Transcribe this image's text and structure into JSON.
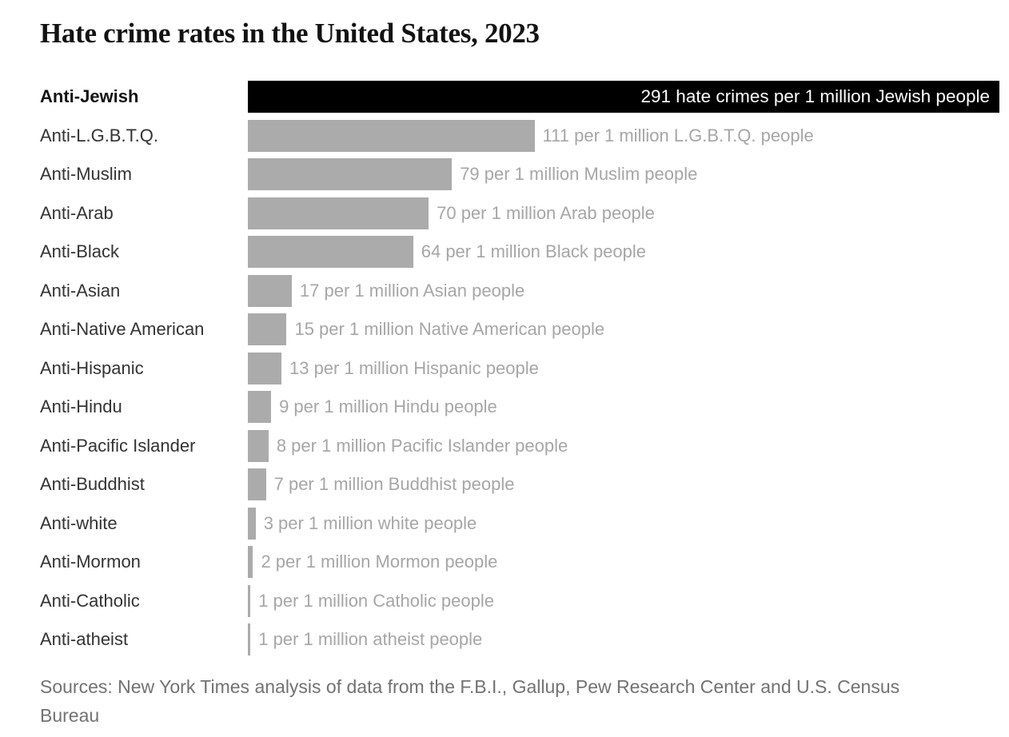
{
  "chart_data": {
    "type": "bar",
    "orientation": "horizontal",
    "title": "Hate crime rates in the United States, 2023",
    "xlabel": "",
    "ylabel": "",
    "xlim": [
      0,
      291
    ],
    "grid": false,
    "legend": "none",
    "bar_color": "#ababab",
    "highlight_color": "#000000",
    "highlight_index": 0,
    "categories": [
      "Anti-Jewish",
      "Anti-L.G.B.T.Q.",
      "Anti-Muslim",
      "Anti-Arab",
      "Anti-Black",
      "Anti-Asian",
      "Anti-Native American",
      "Anti-Hispanic",
      "Anti-Hindu",
      "Anti-Pacific Islander",
      "Anti-Buddhist",
      "Anti-white",
      "Anti-Mormon",
      "Anti-Catholic",
      "Anti-atheist"
    ],
    "values": [
      291,
      111,
      79,
      70,
      64,
      17,
      15,
      13,
      9,
      8,
      7,
      3,
      2,
      1,
      1
    ],
    "value_labels": [
      "291 hate crimes per 1 million Jewish people",
      "111 per 1 million L.G.B.T.Q. people",
      "79 per 1 million Muslim people",
      "70 per 1 million Arab people",
      "64 per 1 million Black people",
      "17 per 1 million Asian people",
      "15 per 1 million Native American people",
      "13 per 1 million Hispanic people",
      "9 per 1 million Hindu people",
      "8 per 1 million Pacific Islander people",
      "7 per 1 million Buddhist people",
      "3 per 1 million white people",
      "2 per 1 million Mormon people",
      "1 per 1 million Catholic people",
      "1 per 1 million atheist people"
    ],
    "source": "Sources: New York Times analysis of data from the F.B.I., Gallup, Pew Research Center and U.S. Census\nBureau"
  }
}
